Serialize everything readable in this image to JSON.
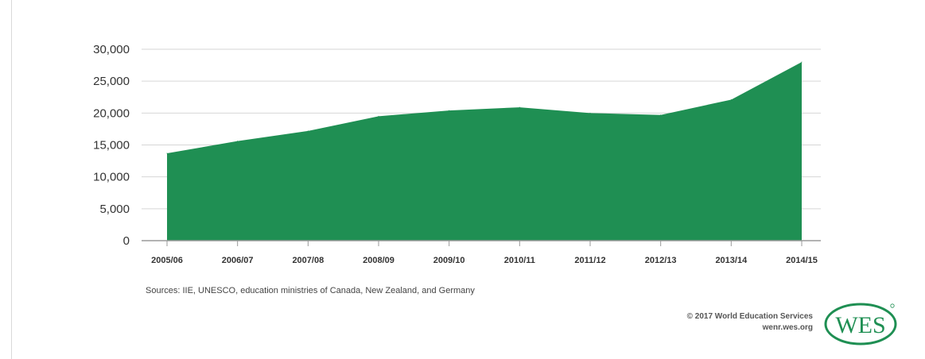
{
  "chart_data": {
    "type": "area",
    "categories": [
      "2005/06",
      "2006/07",
      "2007/08",
      "2008/09",
      "2009/10",
      "2010/11",
      "2011/12",
      "2012/13",
      "2013/14",
      "2014/15"
    ],
    "values": [
      13700,
      15600,
      17200,
      19500,
      20400,
      20900,
      20000,
      19700,
      22100,
      28000
    ],
    "ylim": [
      0,
      30000
    ],
    "yticks": [
      0,
      5000,
      10000,
      15000,
      20000,
      25000,
      30000
    ],
    "ytick_labels": [
      "0",
      "5,000",
      "10,000",
      "15,000",
      "20,000",
      "25,000",
      "30,000"
    ],
    "grid": true,
    "color": "#1f8f53",
    "gridline_color": "#d6d6d6"
  },
  "sources": "Sources: IIE, UNESCO, education ministries of Canada, New Zealand, and Germany",
  "copyright": "© 2017 World Education Services",
  "website": "wenr.wes.org",
  "logo": {
    "text": "WES",
    "color": "#1f8f53"
  }
}
